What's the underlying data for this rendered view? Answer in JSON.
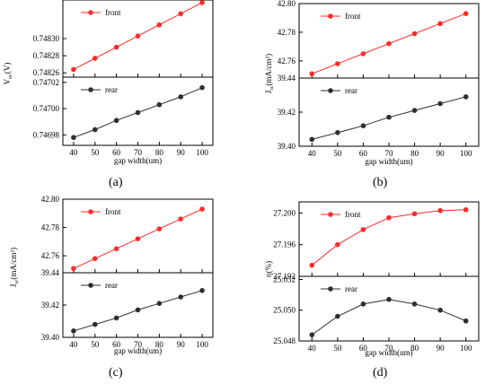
{
  "panels": {
    "a": {
      "label": "(a)"
    },
    "b": {
      "label": "(b)"
    },
    "c": {
      "label": "(c)"
    },
    "d": {
      "label": "(d)"
    }
  },
  "colors": {
    "front": "#ff2a2a",
    "rear": "#2f2f2f",
    "axis": "#000000"
  },
  "chart_data": [
    {
      "id": "a",
      "type": "line",
      "xlabel": "gap width(um)",
      "x_ticks": [
        "40",
        "50",
        "60",
        "70",
        "80",
        "90",
        "100"
      ],
      "ylabel": {
        "main": "V",
        "sub": "oc",
        "rest": "(V)"
      },
      "subplots": [
        {
          "name": "front",
          "x": [
            40,
            50,
            60,
            70,
            80,
            90,
            100
          ],
          "values": [
            0.748264,
            0.748277,
            0.74829,
            0.748303,
            0.748316,
            0.748329,
            0.748342
          ],
          "ylim": [
            0.748255,
            0.748345
          ],
          "y_ticks": [
            0.74826,
            0.74828,
            0.7483
          ],
          "y_tick_labels": [
            "0.74826",
            "0.74828",
            "0.74830"
          ]
        },
        {
          "name": "rear",
          "x": [
            40,
            50,
            60,
            70,
            80,
            90,
            100
          ],
          "values": [
            0.746978,
            0.746984,
            0.746991,
            0.746997,
            0.747003,
            0.747009,
            0.747016
          ],
          "ylim": [
            0.746972,
            0.747024
          ],
          "y_ticks": [
            0.74698,
            0.747,
            0.74702
          ],
          "y_tick_labels": [
            "0.74698",
            "0.74700",
            "0.74702"
          ]
        }
      ]
    },
    {
      "id": "b",
      "type": "line",
      "xlabel": "gap width(um)",
      "x_ticks": [
        "40",
        "50",
        "60",
        "70",
        "80",
        "90",
        "100"
      ],
      "ylabel": {
        "main": "J",
        "sub": "sc",
        "rest": "(mA/cm²)"
      },
      "subplots": [
        {
          "name": "front",
          "x": [
            40,
            50,
            60,
            70,
            80,
            90,
            100
          ],
          "values": [
            42.751,
            42.758,
            42.765,
            42.772,
            42.779,
            42.786,
            42.793
          ],
          "ylim": [
            42.748,
            42.8
          ],
          "y_ticks": [
            42.76,
            42.78,
            42.8
          ],
          "y_tick_labels": [
            "42.76",
            "42.78",
            "42.80"
          ]
        },
        {
          "name": "rear",
          "x": [
            40,
            50,
            60,
            70,
            80,
            90,
            100
          ],
          "values": [
            39.404,
            39.408,
            39.412,
            39.417,
            39.421,
            39.425,
            39.429
          ],
          "ylim": [
            39.4,
            39.44
          ],
          "y_ticks": [
            39.4,
            39.42,
            39.44
          ],
          "y_tick_labels": [
            "39.40",
            "39.42",
            "39.44"
          ]
        }
      ]
    },
    {
      "id": "c",
      "type": "line",
      "xlabel": "gap width(um)",
      "x_ticks": [
        "40",
        "50",
        "60",
        "70",
        "80",
        "90",
        "100"
      ],
      "ylabel": {
        "main": "J",
        "sub": "sc",
        "rest": "(mA/cm²)"
      },
      "subplots": [
        {
          "name": "front",
          "x": [
            40,
            50,
            60,
            70,
            80,
            90,
            100
          ],
          "values": [
            42.751,
            42.758,
            42.765,
            42.772,
            42.779,
            42.786,
            42.793
          ],
          "ylim": [
            42.748,
            42.8
          ],
          "y_ticks": [
            42.76,
            42.78,
            42.8
          ],
          "y_tick_labels": [
            "42.76",
            "42.78",
            "42.80"
          ]
        },
        {
          "name": "rear",
          "x": [
            40,
            50,
            60,
            70,
            80,
            90,
            100
          ],
          "values": [
            39.404,
            39.408,
            39.412,
            39.417,
            39.421,
            39.425,
            39.429
          ],
          "ylim": [
            39.4,
            39.44
          ],
          "y_ticks": [
            39.4,
            39.42,
            39.44
          ],
          "y_tick_labels": [
            "39.40",
            "39.42",
            "39.44"
          ]
        }
      ]
    },
    {
      "id": "d",
      "type": "line",
      "xlabel": "gap width(um)",
      "x_ticks": [
        "40",
        "50",
        "60",
        "70",
        "80",
        "90",
        "100"
      ],
      "ylabel": {
        "main": "η(%)",
        "sub": "",
        "rest": ""
      },
      "subplots": [
        {
          "name": "front",
          "x": [
            40,
            50,
            60,
            70,
            80,
            90,
            100
          ],
          "values": [
            27.1934,
            27.196,
            27.1979,
            27.1994,
            27.1999,
            27.2003,
            27.2004
          ],
          "ylim": [
            27.192,
            27.2014
          ],
          "y_ticks": [
            27.192,
            27.196,
            27.2
          ],
          "y_tick_labels": [
            "27.192",
            "27.196",
            "27.200"
          ]
        },
        {
          "name": "rear",
          "x": [
            40,
            50,
            60,
            70,
            80,
            90,
            100
          ],
          "values": [
            25.0484,
            25.0496,
            25.0504,
            25.0507,
            25.0504,
            25.05,
            25.0493
          ],
          "ylim": [
            25.048,
            25.0522
          ],
          "y_ticks": [
            25.048,
            25.05,
            25.052
          ],
          "y_tick_labels": [
            "25.048",
            "25.050",
            "25.052"
          ]
        }
      ]
    }
  ]
}
